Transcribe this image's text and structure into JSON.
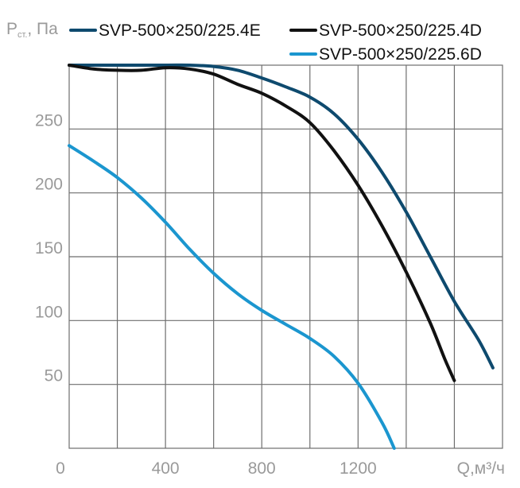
{
  "chart_data": {
    "type": "line",
    "ylabel": "P",
    "ylabel_sub": "ст.",
    "ylabel_unit": ", Па",
    "xlabel": "Q,м³/ч",
    "xlim": [
      0,
      1800
    ],
    "ylim": [
      0,
      300
    ],
    "x_ticks": [
      0,
      400,
      800,
      1200
    ],
    "y_ticks": [
      50,
      100,
      150,
      200,
      250
    ],
    "grid": true,
    "legend_position": "top",
    "series": [
      {
        "name": "SVP-500×250/225.4E",
        "color": "#0e4a6e",
        "x": [
          0,
          200,
          400,
          500,
          600,
          700,
          800,
          900,
          1000,
          1100,
          1200,
          1300,
          1400,
          1500,
          1600,
          1700,
          1760
        ],
        "y": [
          300,
          300,
          300,
          300,
          299,
          296,
          290,
          283,
          275,
          262,
          242,
          216,
          185,
          150,
          115,
          85,
          63
        ]
      },
      {
        "name": "SVP-500×250/225.4D",
        "color": "#111111",
        "x": [
          0,
          100,
          200,
          300,
          400,
          500,
          600,
          700,
          800,
          900,
          1000,
          1100,
          1200,
          1300,
          1400,
          1500,
          1560,
          1600
        ],
        "y": [
          300,
          297,
          296,
          296,
          298,
          297,
          293,
          285,
          278,
          268,
          255,
          233,
          206,
          174,
          138,
          98,
          70,
          53
        ]
      },
      {
        "name": "SVP-500×250/225.6D",
        "color": "#1b96cf",
        "x": [
          0,
          100,
          200,
          300,
          400,
          500,
          600,
          700,
          800,
          900,
          1000,
          1100,
          1200,
          1300,
          1350
        ],
        "y": [
          237,
          225,
          212,
          196,
          177,
          156,
          137,
          121,
          108,
          97,
          86,
          72,
          51,
          20,
          0
        ]
      }
    ]
  }
}
